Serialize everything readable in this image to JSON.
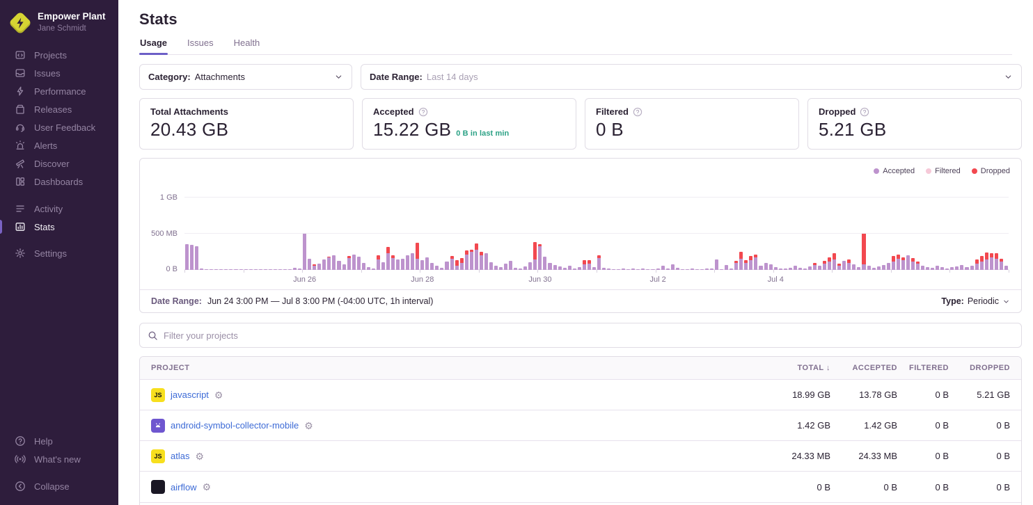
{
  "sidebar": {
    "org_name": "Empower Plant",
    "user_name": "Jane Schmidt",
    "primary_items": [
      {
        "label": "Projects",
        "icon": "projects-icon",
        "active": false
      },
      {
        "label": "Issues",
        "icon": "issues-icon",
        "active": false
      },
      {
        "label": "Performance",
        "icon": "performance-icon",
        "active": false
      },
      {
        "label": "Releases",
        "icon": "releases-icon",
        "active": false
      },
      {
        "label": "User Feedback",
        "icon": "user-feedback-icon",
        "active": false
      },
      {
        "label": "Alerts",
        "icon": "alerts-icon",
        "active": false
      },
      {
        "label": "Discover",
        "icon": "discover-icon",
        "active": false
      },
      {
        "label": "Dashboards",
        "icon": "dashboards-icon",
        "active": false
      }
    ],
    "secondary_items": [
      {
        "label": "Activity",
        "icon": "activity-icon",
        "active": false
      },
      {
        "label": "Stats",
        "icon": "stats-icon",
        "active": true
      }
    ],
    "tertiary_items": [
      {
        "label": "Settings",
        "icon": "settings-icon",
        "active": false
      }
    ],
    "footer_items": [
      {
        "label": "Help",
        "icon": "help-icon",
        "active": false
      },
      {
        "label": "What's new",
        "icon": "whats-new-icon",
        "active": false
      }
    ],
    "collapse_item": {
      "label": "Collapse",
      "icon": "collapse-icon",
      "active": false
    }
  },
  "header": {
    "title": "Stats",
    "tabs": [
      {
        "label": "Usage",
        "active": true
      },
      {
        "label": "Issues",
        "active": false
      },
      {
        "label": "Health",
        "active": false
      }
    ]
  },
  "filters": {
    "category_label": "Category:",
    "category_value": "Attachments",
    "date_range_label": "Date Range:",
    "date_range_value": "Last 14 days"
  },
  "cards": [
    {
      "title": "Total Attachments",
      "value": "20.43 GB",
      "has_help": false,
      "sub": ""
    },
    {
      "title": "Accepted",
      "value": "15.22 GB",
      "has_help": true,
      "sub": "0 B in last min"
    },
    {
      "title": "Filtered",
      "value": "0 B",
      "has_help": true,
      "sub": ""
    },
    {
      "title": "Dropped",
      "value": "5.21 GB",
      "has_help": true,
      "sub": ""
    }
  ],
  "chart_data": {
    "type": "bar",
    "stacked": true,
    "unit": "MB",
    "ymax_mb": 1100,
    "y_ticks": [
      {
        "label": "1 GB",
        "mb": 1000
      },
      {
        "label": "500 MB",
        "mb": 500
      },
      {
        "label": "0 B",
        "mb": 0
      }
    ],
    "x_ticks": [
      {
        "label": "Jun 26",
        "index": 24
      },
      {
        "label": "Jun 28",
        "index": 48
      },
      {
        "label": "Jun 30",
        "index": 72
      },
      {
        "label": "Jul 2",
        "index": 96
      },
      {
        "label": "Jul 4",
        "index": 120
      }
    ],
    "legend": [
      {
        "name": "Accepted",
        "color": "#bd93cd"
      },
      {
        "name": "Filtered",
        "color": "#f6c9d8"
      },
      {
        "name": "Dropped",
        "color": "#f2484f"
      }
    ],
    "series": [
      "accepted_mb",
      "dropped_mb"
    ],
    "bars": [
      [
        360,
        0
      ],
      [
        348,
        0
      ],
      [
        332,
        0
      ],
      [
        24,
        0
      ],
      [
        10,
        0
      ],
      [
        8,
        0
      ],
      [
        6,
        0
      ],
      [
        9,
        0
      ],
      [
        5,
        0
      ],
      [
        7,
        0
      ],
      [
        8,
        0
      ],
      [
        5,
        0
      ],
      [
        6,
        0
      ],
      [
        5,
        0
      ],
      [
        9,
        0
      ],
      [
        11,
        0
      ],
      [
        6,
        0
      ],
      [
        5,
        0
      ],
      [
        12,
        0
      ],
      [
        8,
        0
      ],
      [
        6,
        0
      ],
      [
        10,
        0
      ],
      [
        30,
        0
      ],
      [
        18,
        0
      ],
      [
        510,
        0
      ],
      [
        150,
        0
      ],
      [
        62,
        18
      ],
      [
        88,
        0
      ],
      [
        142,
        0
      ],
      [
        178,
        12
      ],
      [
        205,
        0
      ],
      [
        122,
        0
      ],
      [
        80,
        0
      ],
      [
        168,
        28
      ],
      [
        208,
        0
      ],
      [
        188,
        0
      ],
      [
        92,
        0
      ],
      [
        42,
        0
      ],
      [
        22,
        0
      ],
      [
        148,
        62
      ],
      [
        102,
        0
      ],
      [
        228,
        88
      ],
      [
        168,
        42
      ],
      [
        142,
        0
      ],
      [
        158,
        0
      ],
      [
        198,
        0
      ],
      [
        228,
        0
      ],
      [
        152,
        218
      ],
      [
        132,
        0
      ],
      [
        178,
        0
      ],
      [
        92,
        0
      ],
      [
        58,
        0
      ],
      [
        32,
        0
      ],
      [
        118,
        0
      ],
      [
        158,
        42
      ],
      [
        62,
        78
      ],
      [
        92,
        68
      ],
      [
        208,
        58
      ],
      [
        248,
        32
      ],
      [
        278,
        88
      ],
      [
        198,
        52
      ],
      [
        228,
        0
      ],
      [
        102,
        0
      ],
      [
        62,
        0
      ],
      [
        42,
        0
      ],
      [
        88,
        0
      ],
      [
        128,
        0
      ],
      [
        32,
        0
      ],
      [
        22,
        0
      ],
      [
        52,
        0
      ],
      [
        108,
        0
      ],
      [
        148,
        238
      ],
      [
        328,
        32
      ],
      [
        188,
        0
      ],
      [
        92,
        0
      ],
      [
        68,
        0
      ],
      [
        48,
        0
      ],
      [
        32,
        0
      ],
      [
        58,
        0
      ],
      [
        22,
        0
      ],
      [
        38,
        0
      ],
      [
        78,
        58
      ],
      [
        88,
        48
      ],
      [
        42,
        0
      ],
      [
        168,
        42
      ],
      [
        32,
        0
      ],
      [
        18,
        0
      ],
      [
        12,
        0
      ],
      [
        14,
        0
      ],
      [
        22,
        0
      ],
      [
        10,
        0
      ],
      [
        16,
        0
      ],
      [
        12,
        0
      ],
      [
        18,
        0
      ],
      [
        14,
        0
      ],
      [
        10,
        0
      ],
      [
        16,
        0
      ],
      [
        58,
        0
      ],
      [
        22,
        0
      ],
      [
        78,
        0
      ],
      [
        32,
        0
      ],
      [
        14,
        0
      ],
      [
        10,
        0
      ],
      [
        22,
        0
      ],
      [
        14,
        0
      ],
      [
        10,
        0
      ],
      [
        16,
        0
      ],
      [
        20,
        0
      ],
      [
        148,
        0
      ],
      [
        12,
        0
      ],
      [
        72,
        0
      ],
      [
        16,
        0
      ],
      [
        98,
        28
      ],
      [
        158,
        98
      ],
      [
        92,
        42
      ],
      [
        138,
        58
      ],
      [
        178,
        38
      ],
      [
        62,
        0
      ],
      [
        98,
        0
      ],
      [
        78,
        0
      ],
      [
        42,
        0
      ],
      [
        22,
        0
      ],
      [
        16,
        0
      ],
      [
        28,
        0
      ],
      [
        58,
        0
      ],
      [
        26,
        0
      ],
      [
        16,
        0
      ],
      [
        44,
        0
      ],
      [
        68,
        28
      ],
      [
        56,
        0
      ],
      [
        88,
        38
      ],
      [
        118,
        58
      ],
      [
        148,
        88
      ],
      [
        62,
        28
      ],
      [
        128,
        0
      ],
      [
        98,
        48
      ],
      [
        78,
        0
      ],
      [
        42,
        0
      ],
      [
        78,
        438
      ],
      [
        58,
        0
      ],
      [
        32,
        0
      ],
      [
        44,
        0
      ],
      [
        68,
        0
      ],
      [
        98,
        0
      ],
      [
        118,
        78
      ],
      [
        158,
        58
      ],
      [
        138,
        38
      ],
      [
        198,
        0
      ],
      [
        118,
        48
      ],
      [
        88,
        28
      ],
      [
        58,
        0
      ],
      [
        38,
        0
      ],
      [
        28,
        0
      ],
      [
        58,
        0
      ],
      [
        38,
        0
      ],
      [
        22,
        0
      ],
      [
        34,
        0
      ],
      [
        48,
        0
      ],
      [
        68,
        0
      ],
      [
        38,
        0
      ],
      [
        58,
        0
      ],
      [
        88,
        58
      ],
      [
        118,
        78
      ],
      [
        148,
        98
      ],
      [
        178,
        58
      ],
      [
        158,
        78
      ],
      [
        118,
        38
      ],
      [
        58,
        0
      ]
    ]
  },
  "chart_footer": {
    "label": "Date Range:",
    "value": "Jun 24 3:00 PM — Jul 8 3:00 PM (-04:00 UTC, 1h interval)",
    "type_label": "Type:",
    "type_value": "Periodic"
  },
  "project_filter": {
    "placeholder": "Filter your projects"
  },
  "table": {
    "columns": [
      {
        "label": "PROJECT",
        "align": "left",
        "sorted": ""
      },
      {
        "label": "TOTAL",
        "align": "right",
        "sorted": "desc"
      },
      {
        "label": "ACCEPTED",
        "align": "right",
        "sorted": ""
      },
      {
        "label": "FILTERED",
        "align": "right",
        "sorted": ""
      },
      {
        "label": "DROPPED",
        "align": "right",
        "sorted": ""
      }
    ],
    "sort_icon": "↓",
    "rows": [
      {
        "platform": "javascript",
        "badge": "JS",
        "name": "javascript",
        "total": "18.99 GB",
        "accepted": "13.78 GB",
        "filtered": "0 B",
        "dropped": "5.21 GB"
      },
      {
        "platform": "android",
        "badge": "android",
        "name": "android-symbol-collector-mobile",
        "total": "1.42 GB",
        "accepted": "1.42 GB",
        "filtered": "0 B",
        "dropped": "0 B"
      },
      {
        "platform": "javascript",
        "badge": "JS",
        "name": "atlas",
        "total": "24.33 MB",
        "accepted": "24.33 MB",
        "filtered": "0 B",
        "dropped": "0 B"
      },
      {
        "platform": "generic",
        "badge": "</>",
        "name": "airflow",
        "total": "0 B",
        "accepted": "0 B",
        "filtered": "0 B",
        "dropped": "0 B"
      }
    ],
    "gear_icon": "⚙"
  }
}
